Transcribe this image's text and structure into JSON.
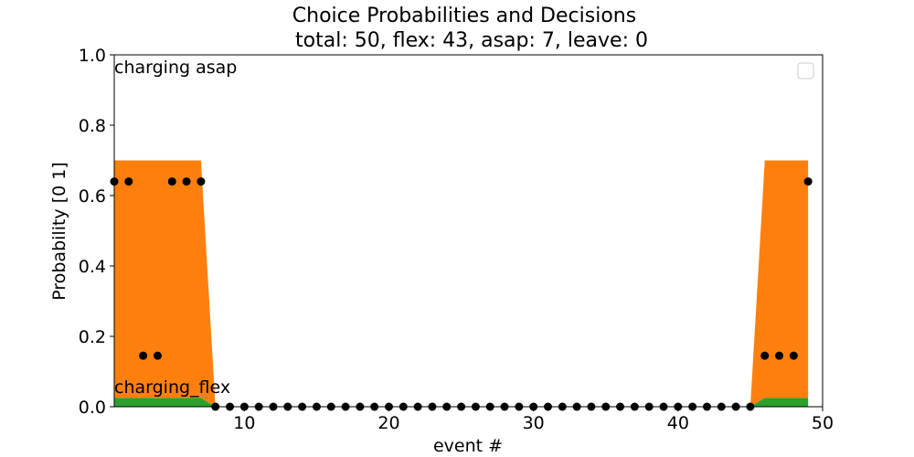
{
  "chart_data": {
    "type": "area",
    "title": "Choice Probabilities and Decisions",
    "subtitle": "total: 50, flex: 43, asap: 7, leave: 0",
    "xlabel": "event #",
    "ylabel": "Probability [0 1]",
    "xlim": [
      1,
      50
    ],
    "ylim": [
      0,
      1
    ],
    "xticks": [
      10,
      20,
      30,
      40,
      50
    ],
    "yticks": [
      0.0,
      0.2,
      0.4,
      0.6,
      0.8,
      1.0
    ],
    "xtick_labels": [
      "10",
      "20",
      "30",
      "40",
      "50"
    ],
    "ytick_labels": [
      "0.0",
      "0.2",
      "0.4",
      "0.6",
      "0.8",
      "1.0"
    ],
    "annotations": [
      {
        "text": "charging asap"
      },
      {
        "text": "charging_flex"
      }
    ],
    "legend": {
      "placement": "top-right",
      "entries": []
    },
    "grid": false,
    "x": [
      1,
      2,
      3,
      4,
      5,
      6,
      7,
      8,
      9,
      10,
      11,
      12,
      13,
      14,
      15,
      16,
      17,
      18,
      19,
      20,
      21,
      22,
      23,
      24,
      25,
      26,
      27,
      28,
      29,
      30,
      31,
      32,
      33,
      34,
      35,
      36,
      37,
      38,
      39,
      40,
      41,
      42,
      43,
      44,
      45,
      46,
      47,
      48,
      49
    ],
    "series": [
      {
        "values": [
          0.025,
          0.025,
          0.025,
          0.025,
          0.025,
          0.025,
          0.025,
          0,
          0,
          0,
          0,
          0,
          0,
          0,
          0,
          0,
          0,
          0,
          0,
          0,
          0,
          0,
          0,
          0,
          0,
          0,
          0,
          0,
          0,
          0,
          0,
          0,
          0,
          0,
          0,
          0,
          0,
          0,
          0,
          0,
          0,
          0,
          0,
          0,
          0,
          0.025,
          0.025,
          0.025,
          0.025
        ],
        "color": "#2ca02c"
      },
      {
        "values": [
          0.675,
          0.675,
          0.675,
          0.675,
          0.675,
          0.675,
          0.675,
          0,
          0,
          0,
          0,
          0,
          0,
          0,
          0,
          0,
          0,
          0,
          0,
          0,
          0,
          0,
          0,
          0,
          0,
          0,
          0,
          0,
          0,
          0,
          0,
          0,
          0,
          0,
          0,
          0,
          0,
          0,
          0,
          0,
          0,
          0,
          0,
          0,
          0,
          0.675,
          0.675,
          0.675,
          0.675
        ],
        "color": "#ff7f0e"
      }
    ],
    "decisions": {
      "color": "#000000",
      "y": [
        0.64,
        0.64,
        0.145,
        0.145,
        0.64,
        0.64,
        0.64,
        0,
        0,
        0,
        0,
        0,
        0,
        0,
        0,
        0,
        0,
        0,
        0,
        0,
        0,
        0,
        0,
        0,
        0,
        0,
        0,
        0,
        0,
        0,
        0,
        0,
        0,
        0,
        0,
        0,
        0,
        0,
        0,
        0,
        0,
        0,
        0,
        0,
        0,
        0.145,
        0.145,
        0.145,
        0.64
      ]
    }
  }
}
